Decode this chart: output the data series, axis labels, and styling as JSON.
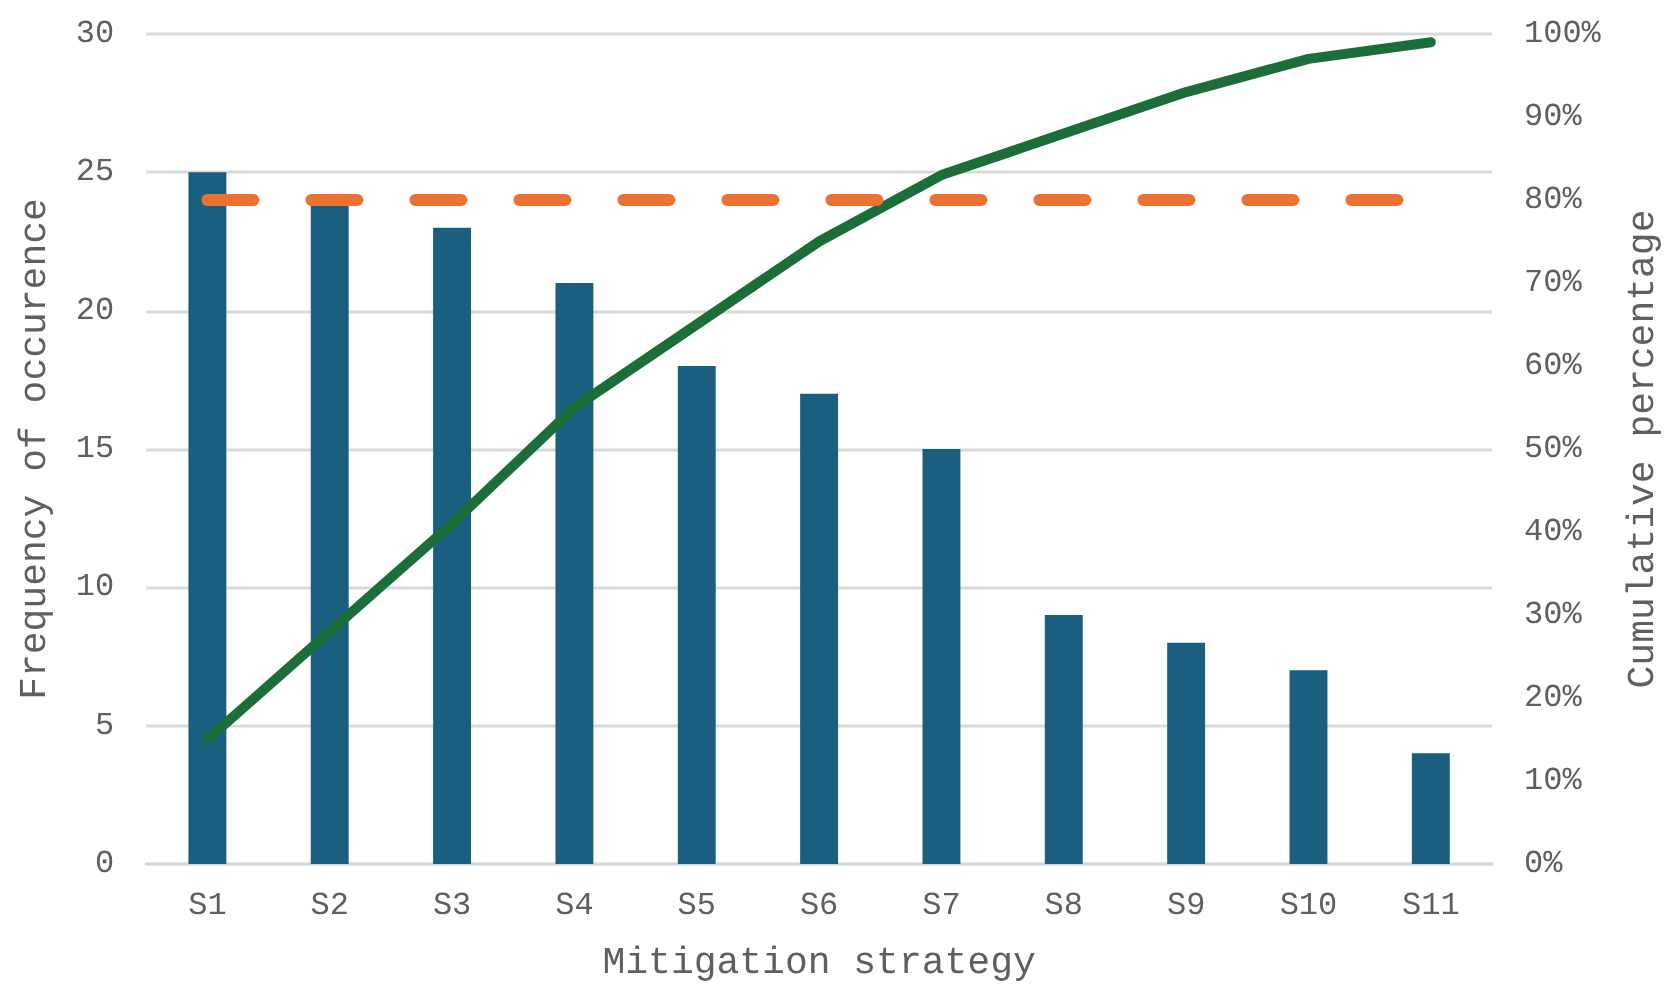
{
  "chart_data": {
    "type": "bar",
    "xlabel": "Mitigation strategy",
    "ylabel": "Frequency of occurence",
    "y2label": "Cumulative percentage",
    "categories": [
      "S1",
      "S2",
      "S3",
      "S4",
      "S5",
      "S6",
      "S7",
      "S8",
      "S9",
      "S10",
      "S11"
    ],
    "series": [
      {
        "color": "#1a5f80",
        "values": [
          25,
          24,
          23,
          21,
          18,
          17,
          15,
          9,
          8,
          7,
          4
        ]
      },
      {
        "type": "line",
        "axis": "y2",
        "color": "#1c6e38",
        "marker": "none",
        "line_style": "solid",
        "values": [
          15,
          28,
          41,
          55,
          65,
          75,
          83,
          88,
          93,
          97,
          99
        ]
      }
    ],
    "ylim": [
      0,
      30
    ],
    "yticks": [
      0,
      5,
      10,
      15,
      20,
      25,
      30
    ],
    "y2lim": [
      0,
      100
    ],
    "y2ticks": [
      {
        "value": 0,
        "label": "0%"
      },
      {
        "value": 10,
        "label": "10%"
      },
      {
        "value": 20,
        "label": "20%"
      },
      {
        "value": 30,
        "label": "30%"
      },
      {
        "value": 40,
        "label": "40%"
      },
      {
        "value": 50,
        "label": "50%"
      },
      {
        "value": 60,
        "label": "60%"
      },
      {
        "value": 70,
        "label": "70%"
      },
      {
        "value": 80,
        "label": "80%"
      },
      {
        "value": 90,
        "label": "90%"
      },
      {
        "value": 100,
        "label": "100%"
      }
    ],
    "ref_lines": [
      {
        "axis": "y2",
        "value": 80,
        "color": "#ed7131",
        "line_style": "dashed"
      }
    ],
    "grid": "y"
  }
}
